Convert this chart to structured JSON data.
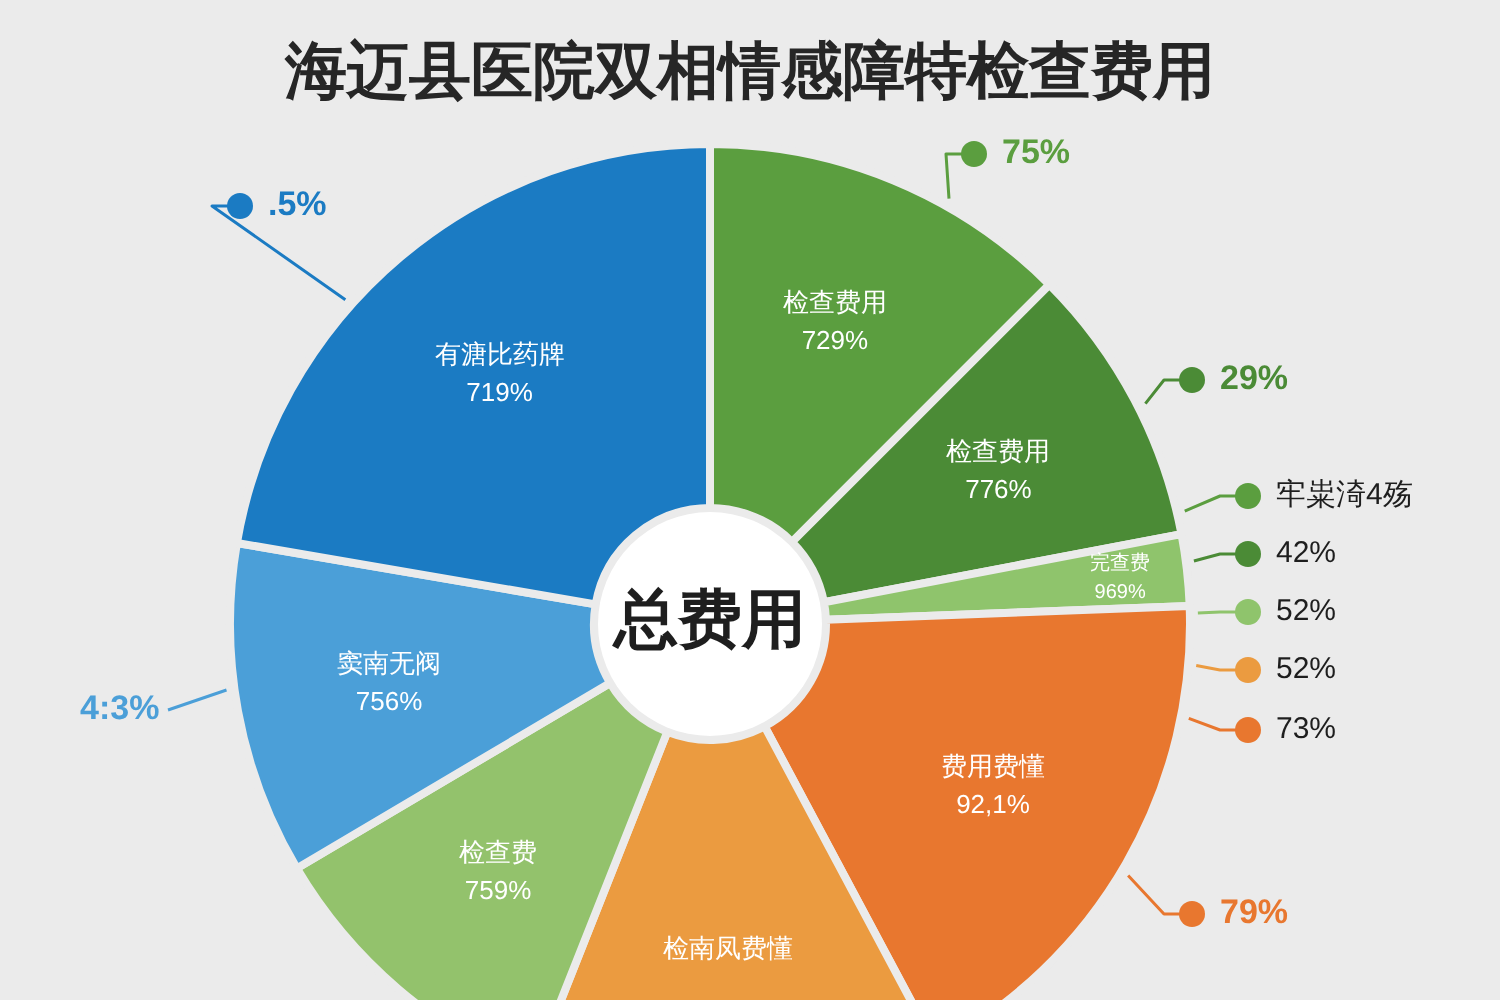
{
  "chart_data": {
    "type": "donut",
    "title": "海迈县医院双相情感障特检查费用",
    "categories": [
      "检查费用",
      "检查费用",
      "完查费",
      "费用费懂",
      "检南凤费懂",
      "检查费",
      "窦南无阀",
      "有溏比药牌"
    ],
    "values": [
      12.5,
      9.5,
      2.4,
      17.8,
      13.8,
      10.5,
      11.2,
      22.3
    ],
    "colors": [
      "#5b9e3f",
      "#4b8b36",
      "#8fc46c",
      "#e8772f",
      "#eb9b40",
      "#93c26c",
      "#4b9fd8",
      "#1b7bc3"
    ],
    "annotations": [
      "总费用",
      ".5%",
      "4:3%",
      "75%",
      "29%",
      "牢粜渏4殇",
      "42%",
      "52%",
      "52%",
      "73%",
      "79%",
      "729%",
      "776%",
      "969%",
      "92,1%",
      "759%",
      "756%",
      "719%"
    ]
  }
}
